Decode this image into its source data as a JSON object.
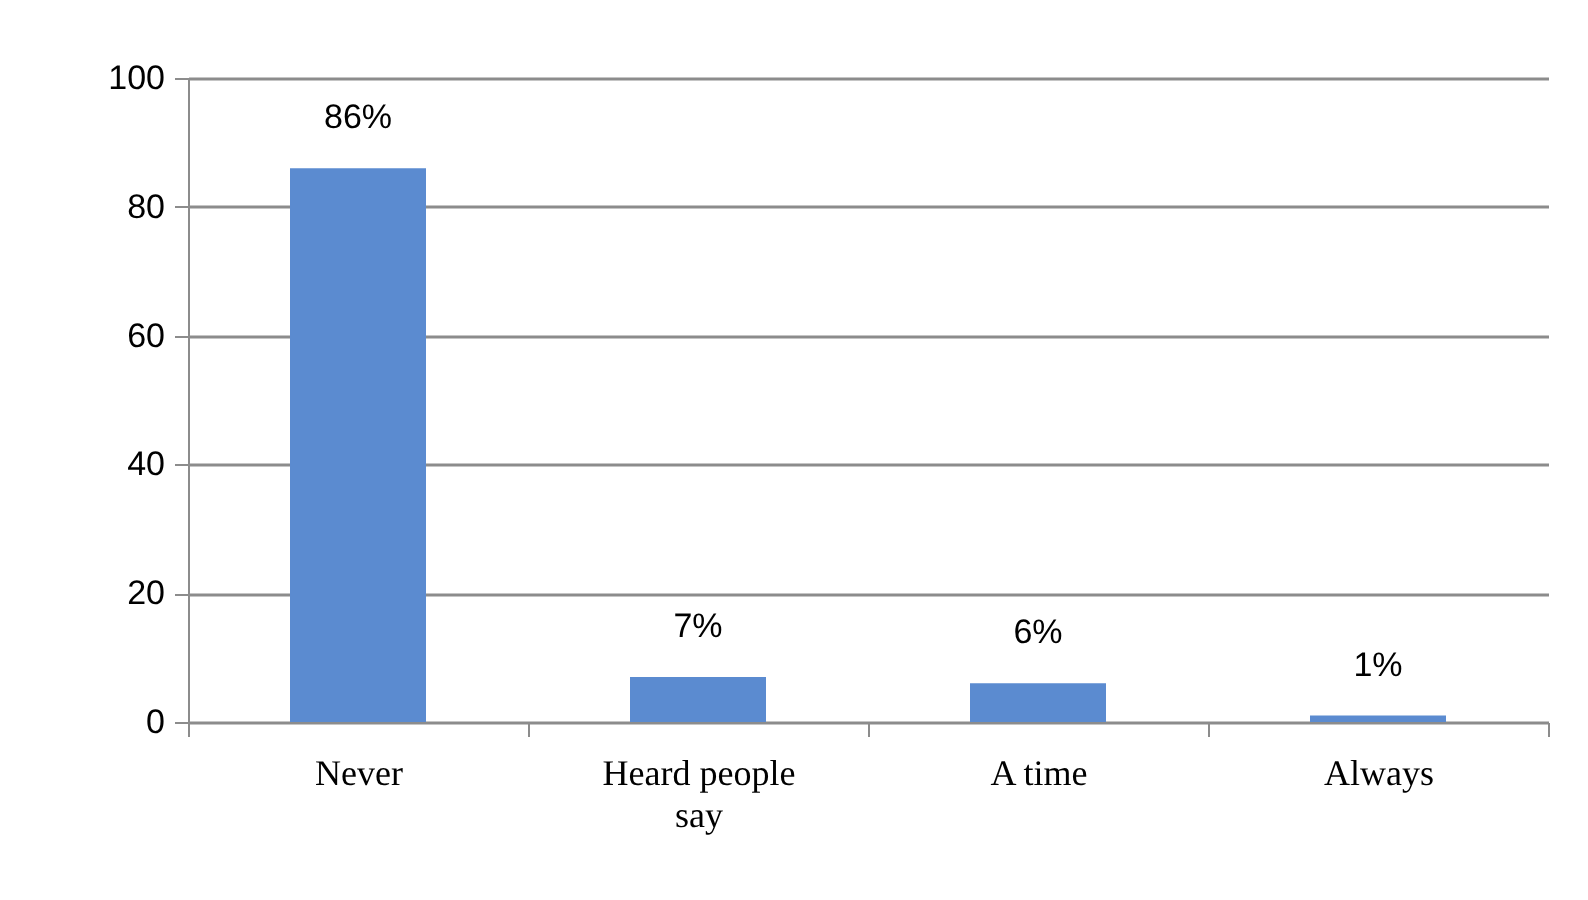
{
  "chart_data": {
    "type": "bar",
    "categories": [
      "Never",
      "Heard people say",
      "A time",
      "Always"
    ],
    "values": [
      86,
      7,
      6,
      1
    ],
    "color": "#5b8bd0",
    "value_labels": [
      "86%",
      "7%",
      "6%",
      "1%"
    ],
    "ylim": [
      0,
      100
    ],
    "yticks": [
      0,
      20,
      40,
      60,
      80,
      100
    ],
    "grid": "y"
  }
}
